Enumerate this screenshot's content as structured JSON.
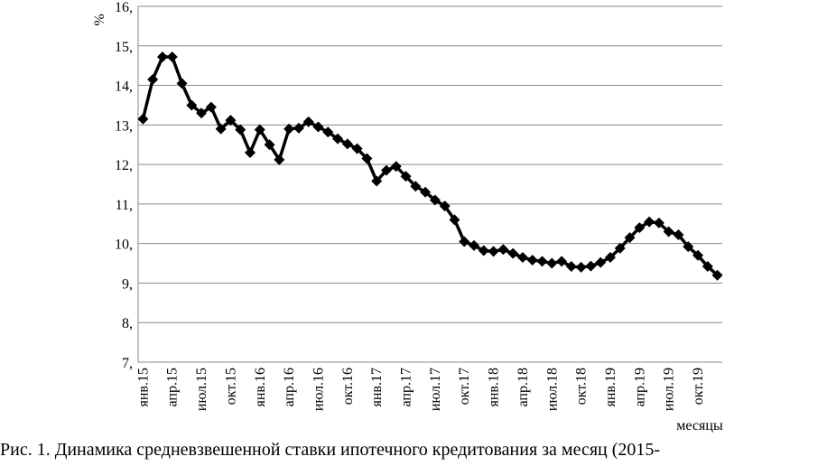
{
  "chart_data": {
    "type": "line",
    "y_label": "%",
    "x_label": "месяцы",
    "caption": "Рис. 1. Динамика средневзвешенной ставки ипотечного кредитования за месяц (2015-",
    "categories": [
      "янв.15",
      null,
      null,
      "апр.15",
      null,
      null,
      "июл.15",
      null,
      null,
      "окт.15",
      null,
      null,
      "янв.16",
      null,
      null,
      "апр.16",
      null,
      null,
      "июл.16",
      null,
      null,
      "окт.16",
      null,
      null,
      "янв.17",
      null,
      null,
      "апр.17",
      null,
      null,
      "июл.17",
      null,
      null,
      "окт.17",
      null,
      null,
      "янв.18",
      null,
      null,
      "апр.18",
      null,
      null,
      "июл.18",
      null,
      null,
      "окт.18",
      null,
      null,
      "янв.19",
      null,
      null,
      "апр.19",
      null,
      null,
      "июл.19",
      null,
      null,
      "окт.19",
      null,
      null
    ],
    "series": [
      {
        "color": "#000000",
        "values": [
          13.15,
          14.15,
          14.72,
          14.72,
          14.05,
          13.5,
          13.3,
          13.45,
          12.9,
          13.12,
          12.88,
          12.3,
          12.88,
          12.5,
          12.12,
          12.9,
          12.92,
          13.08,
          12.95,
          12.82,
          12.65,
          12.52,
          12.4,
          12.15,
          11.58,
          11.85,
          11.95,
          11.7,
          11.45,
          11.3,
          11.1,
          10.95,
          10.6,
          10.05,
          9.95,
          9.82,
          9.8,
          9.85,
          9.75,
          9.65,
          9.58,
          9.55,
          9.5,
          9.55,
          9.42,
          9.4,
          9.43,
          9.52,
          9.65,
          9.88,
          10.15,
          10.4,
          10.55,
          10.52,
          10.3,
          10.22,
          9.92,
          9.7,
          9.42,
          9.2
        ]
      }
    ],
    "ylim": [
      7,
      16
    ],
    "yticks": [
      {
        "value": 7,
        "label": "7,"
      },
      {
        "value": 8,
        "label": "8,"
      },
      {
        "value": 9,
        "label": "9,"
      },
      {
        "value": 10,
        "label": "10,"
      },
      {
        "value": 11,
        "label": "11,"
      },
      {
        "value": 12,
        "label": "12,"
      },
      {
        "value": 13,
        "label": "13,"
      },
      {
        "value": 14,
        "label": "14,"
      },
      {
        "value": 15,
        "label": "15,"
      },
      {
        "value": 16,
        "label": "16,"
      }
    ],
    "grid": true
  }
}
